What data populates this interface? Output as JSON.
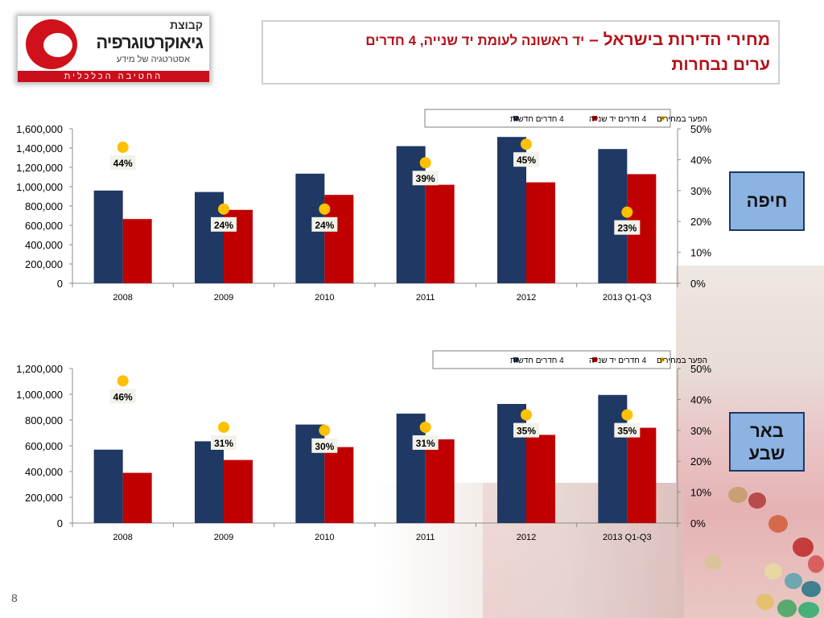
{
  "logo": {
    "line1": "קבוצת",
    "line2": "גיאוקרטוגרפיה",
    "line3": "אסטרטגיה של מידע",
    "bar": "החטיבה הכלכלית"
  },
  "title": {
    "main": "מחירי הדירות בישראל –",
    "sub": "יד ראשונה לעומת יד שנייה, 4 חדרים",
    "line2": "ערים נבחרות"
  },
  "page_number": "8",
  "colors": {
    "new": "#1f3864",
    "used": "#c00000",
    "gap": "#ffc000",
    "title": "#b4121a",
    "city_box": "#8db3e2"
  },
  "chart_data": [
    {
      "type": "bar",
      "city_label": "חיפה",
      "categories": [
        "2008",
        "2009",
        "2010",
        "2011",
        "2012",
        "2013 Q1-Q3"
      ],
      "series": [
        {
          "name": "4 חדרים חדשות",
          "values": [
            960000,
            945000,
            1135000,
            1420000,
            1515000,
            1390000
          ]
        },
        {
          "name": "4 חדרים יד שנייה",
          "values": [
            665000,
            760000,
            915000,
            1020000,
            1045000,
            1130000
          ]
        },
        {
          "name": "הפער במחירים",
          "values": [
            44,
            24,
            24,
            39,
            45,
            23
          ],
          "labels": [
            "44%",
            "24%",
            "24%",
            "39%",
            "45%",
            "23%"
          ],
          "axis": "secondary"
        }
      ],
      "yticks": [
        "1,600,000",
        "1,400,000",
        "1,200,000",
        "1,000,000",
        "800,000",
        "600,000",
        "400,000",
        "200,000",
        "0"
      ],
      "y2ticks": [
        "50%",
        "40%",
        "30%",
        "20%",
        "10%",
        "0%"
      ],
      "ylim": [
        0,
        1600000
      ],
      "y2lim": [
        0,
        50
      ],
      "legend": "top-right"
    },
    {
      "type": "bar",
      "city_label": "באר שבע",
      "categories": [
        "2008",
        "2009",
        "2010",
        "2011",
        "2012",
        "2013 Q1-Q3"
      ],
      "series": [
        {
          "name": "4 חדרים חדשות",
          "values": [
            570000,
            635000,
            765000,
            850000,
            925000,
            995000
          ]
        },
        {
          "name": "4 חדרים יד שנייה",
          "values": [
            390000,
            490000,
            590000,
            650000,
            685000,
            740000
          ]
        },
        {
          "name": "הפער במחירים",
          "values": [
            46,
            31,
            30,
            31,
            35,
            35
          ],
          "labels": [
            "46%",
            "31%",
            "30%",
            "31%",
            "35%",
            "35%"
          ],
          "axis": "secondary"
        }
      ],
      "yticks": [
        "1,200,000",
        "1,000,000",
        "800,000",
        "600,000",
        "400,000",
        "200,000",
        "0"
      ],
      "y2ticks": [
        "50%",
        "40%",
        "30%",
        "20%",
        "10%",
        "0%"
      ],
      "ylim": [
        0,
        1200000
      ],
      "y2lim": [
        0,
        50
      ],
      "legend": "top-right"
    }
  ]
}
